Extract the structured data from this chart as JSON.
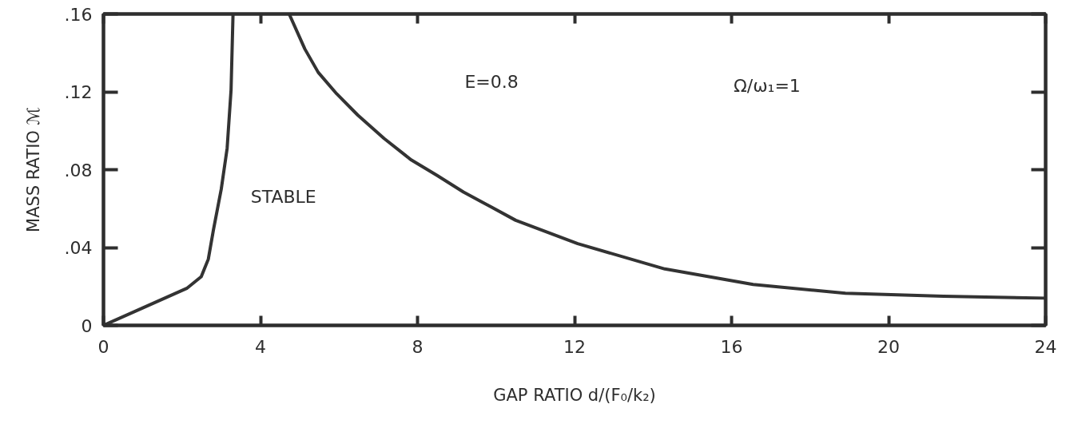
{
  "chart_data": {
    "type": "line",
    "xlabel": "GAP RATIO d/(F₀/k₂)",
    "ylabel": "MASS RATIO ℳ",
    "xlim": [
      0,
      24
    ],
    "ylim": [
      0,
      0.16
    ],
    "xticks": [
      0,
      4,
      8,
      12,
      16,
      20,
      24
    ],
    "yticks": [
      0,
      {
        "value": 0.04,
        "label": ".04"
      },
      {
        "value": 0.08,
        "label": ".08"
      },
      {
        "value": 0.12,
        "label": ".12"
      },
      {
        "value": 0.16,
        "label": ".16"
      }
    ],
    "grid": false,
    "line_style": "solid",
    "annotations": [
      "STABLE",
      "E=0.8",
      "Ω/ω₁=1"
    ],
    "series": [
      {
        "color": "#333333",
        "x": [
          0,
          1.0,
          2.12,
          2.49,
          2.67,
          2.8,
          3.0,
          3.15,
          3.25,
          3.3
        ],
        "values": [
          0,
          0.009,
          0.019,
          0.025,
          0.034,
          0.049,
          0.07,
          0.091,
          0.121,
          0.16
        ]
      },
      {
        "color": "#333333",
        "x": [
          4.73,
          5.13,
          5.47,
          5.94,
          6.48,
          7.15,
          7.84,
          8.5,
          9.17,
          9.86,
          10.5,
          12.08,
          14.3,
          16.55,
          18.9,
          21.4,
          24
        ],
        "values": [
          0.16,
          0.142,
          0.13,
          0.119,
          0.108,
          0.096,
          0.085,
          0.077,
          0.0685,
          0.061,
          0.054,
          0.042,
          0.029,
          0.021,
          0.0165,
          0.015,
          0.014
        ]
      }
    ]
  }
}
